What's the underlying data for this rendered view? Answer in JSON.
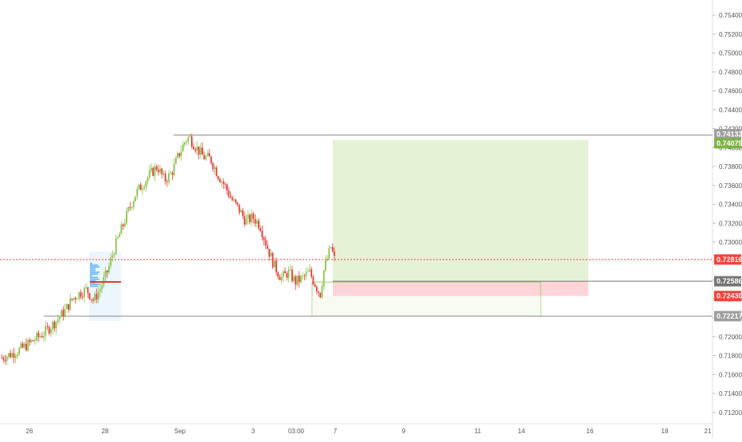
{
  "chart_data": {
    "type": "candlestick",
    "title": "",
    "colors": {
      "up": "#8bc34a",
      "down": "#e53935",
      "last_price": "#f44336",
      "neutral_line": "#888888",
      "profit_zone": "#dcedc8",
      "loss_zone": "#ffcdd2",
      "entry_label": "#757575",
      "target_label": "#7cb342",
      "box_outline": "#9ccc65"
    },
    "y_axis": {
      "range": [
        0.7108,
        0.7556
      ],
      "ticks": [
        "0.75400",
        "0.75200",
        "0.75000",
        "0.74800",
        "0.74600",
        "0.74400",
        "0.74200",
        "0.74000",
        "0.73800",
        "0.73600",
        "0.73400",
        "0.73200",
        "0.73000",
        "0.72800",
        "0.72600",
        "0.72400",
        "0.72200",
        "0.72000",
        "0.71800",
        "0.71600",
        "0.71400",
        "0.71200"
      ]
    },
    "x_axis": {
      "labels": [
        "26",
        "28",
        "Sep",
        "3",
        "03:00",
        "7",
        "9",
        "11",
        "14",
        "16",
        "18",
        "21"
      ]
    },
    "price_labels": {
      "resistance": "0.74132",
      "target": "0.74079",
      "last": "0.72816",
      "entry": "0.72586",
      "stop": "0.72430",
      "support": "0.72217"
    },
    "levels": {
      "resistance": 0.74132,
      "target": 0.74079,
      "last": 0.72816,
      "entry": 0.72586,
      "stop": 0.7243,
      "support": 0.72217
    },
    "price_path": [
      [
        0,
        0.7178
      ],
      [
        3,
        0.7182
      ],
      [
        6,
        0.7188
      ],
      [
        9,
        0.7196
      ],
      [
        12,
        0.7204
      ],
      [
        15,
        0.7215
      ],
      [
        18,
        0.7228
      ],
      [
        20,
        0.724
      ],
      [
        22,
        0.7246
      ],
      [
        24,
        0.725
      ],
      [
        26,
        0.7238
      ],
      [
        28,
        0.7252
      ],
      [
        30,
        0.727
      ],
      [
        32,
        0.7295
      ],
      [
        34,
        0.7315
      ],
      [
        36,
        0.7335
      ],
      [
        38,
        0.7352
      ],
      [
        40,
        0.7362
      ],
      [
        42,
        0.7372
      ],
      [
        44,
        0.738
      ],
      [
        46,
        0.7365
      ],
      [
        48,
        0.7373
      ],
      [
        50,
        0.7392
      ],
      [
        52,
        0.7408
      ],
      [
        53,
        0.7411
      ],
      [
        55,
        0.74
      ],
      [
        57,
        0.739
      ],
      [
        59,
        0.7388
      ],
      [
        61,
        0.7372
      ],
      [
        63,
        0.736
      ],
      [
        65,
        0.7345
      ],
      [
        67,
        0.7335
      ],
      [
        69,
        0.7322
      ],
      [
        71,
        0.7326
      ],
      [
        73,
        0.7318
      ],
      [
        75,
        0.7295
      ],
      [
        77,
        0.7275
      ],
      [
        79,
        0.7262
      ],
      [
        81,
        0.7268
      ],
      [
        83,
        0.7258
      ],
      [
        85,
        0.7262
      ],
      [
        87,
        0.7268
      ],
      [
        89,
        0.7252
      ],
      [
        90,
        0.7245
      ],
      [
        91,
        0.727
      ],
      [
        93,
        0.7295
      ],
      [
        94,
        0.7282
      ]
    ]
  }
}
